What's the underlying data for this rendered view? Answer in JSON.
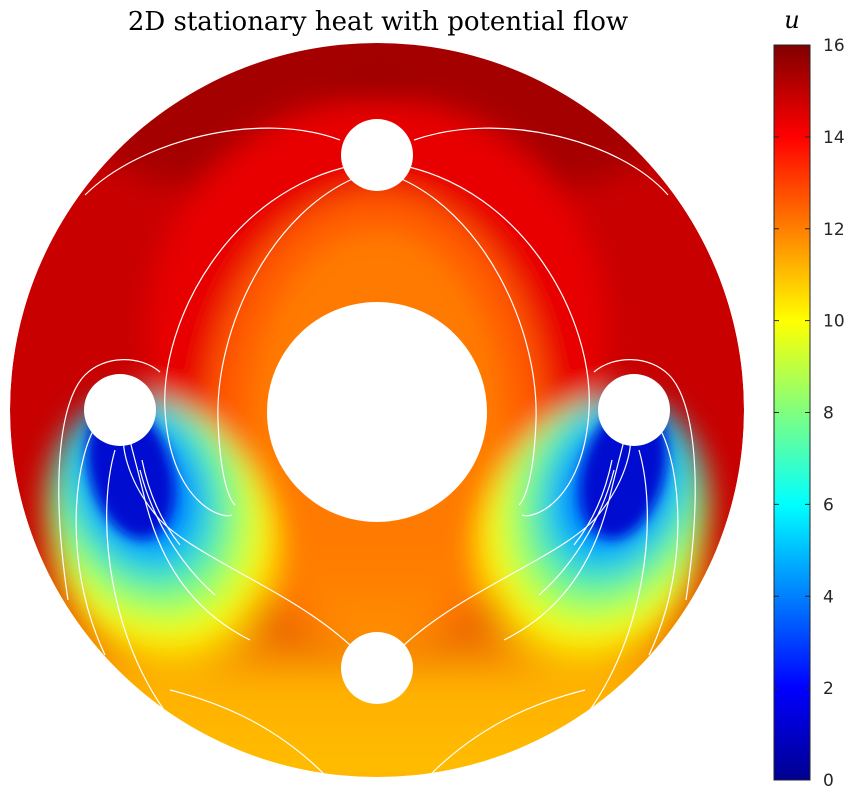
{
  "chart_data": {
    "type": "heatmap",
    "title": "2D stationary heat with potential flow",
    "colorbar": {
      "label": "u",
      "min": 0,
      "max": 16,
      "ticks": [
        "0",
        "2",
        "4",
        "6",
        "8",
        "10",
        "12",
        "14",
        "16"
      ],
      "tick_values": [
        0,
        2,
        4,
        6,
        8,
        10,
        12,
        14,
        16
      ],
      "colormap": "jet",
      "levels": 64
    },
    "domain": "annulus with four small circular holes (top, bottom, left, right)",
    "field_summary": {
      "outer_boundary_value": 15.3,
      "central_region_value": 12,
      "top_hole_neighborhood_value": 16,
      "left_right_holes_value": 0,
      "bottom_region_value": 11
    },
    "contour_color": "#ffffff"
  }
}
